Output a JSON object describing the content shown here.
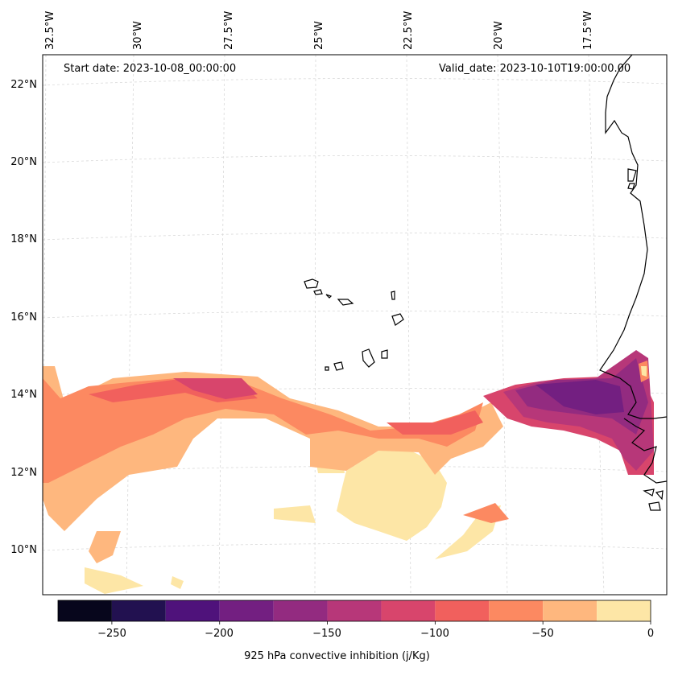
{
  "map": {
    "start_label": "Start date: 2023-10-08_00:00:00",
    "valid_label": "Valid_date: 2023-10-10T19:00:00.00",
    "lon_labels": [
      "32.5°W",
      "30°W",
      "27.5°W",
      "25°W",
      "22.5°W",
      "20°W",
      "17.5°W"
    ],
    "lat_labels": [
      "22°N",
      "20°N",
      "18°N",
      "16°N",
      "14°N",
      "12°N",
      "10°N"
    ],
    "gridlines": "dashed light grey"
  },
  "colorbar": {
    "label": "925 hPa convective inhibition (j/Kg)",
    "levels": [
      -275,
      -250,
      -225,
      -200,
      -175,
      -150,
      -125,
      -100,
      -75,
      -50,
      -25,
      0
    ],
    "colors": [
      "#07061c",
      "#221150",
      "#4f127b",
      "#731f81",
      "#932b80",
      "#b73779",
      "#d8456c",
      "#f1605d",
      "#fc8961",
      "#feb77e",
      "#fde6a6"
    ],
    "tick_values": [
      -250,
      -200,
      -150,
      -100,
      -50,
      0
    ],
    "tick_labels": [
      "−250",
      "−200",
      "−150",
      "−100",
      "−50",
      "0"
    ]
  }
}
